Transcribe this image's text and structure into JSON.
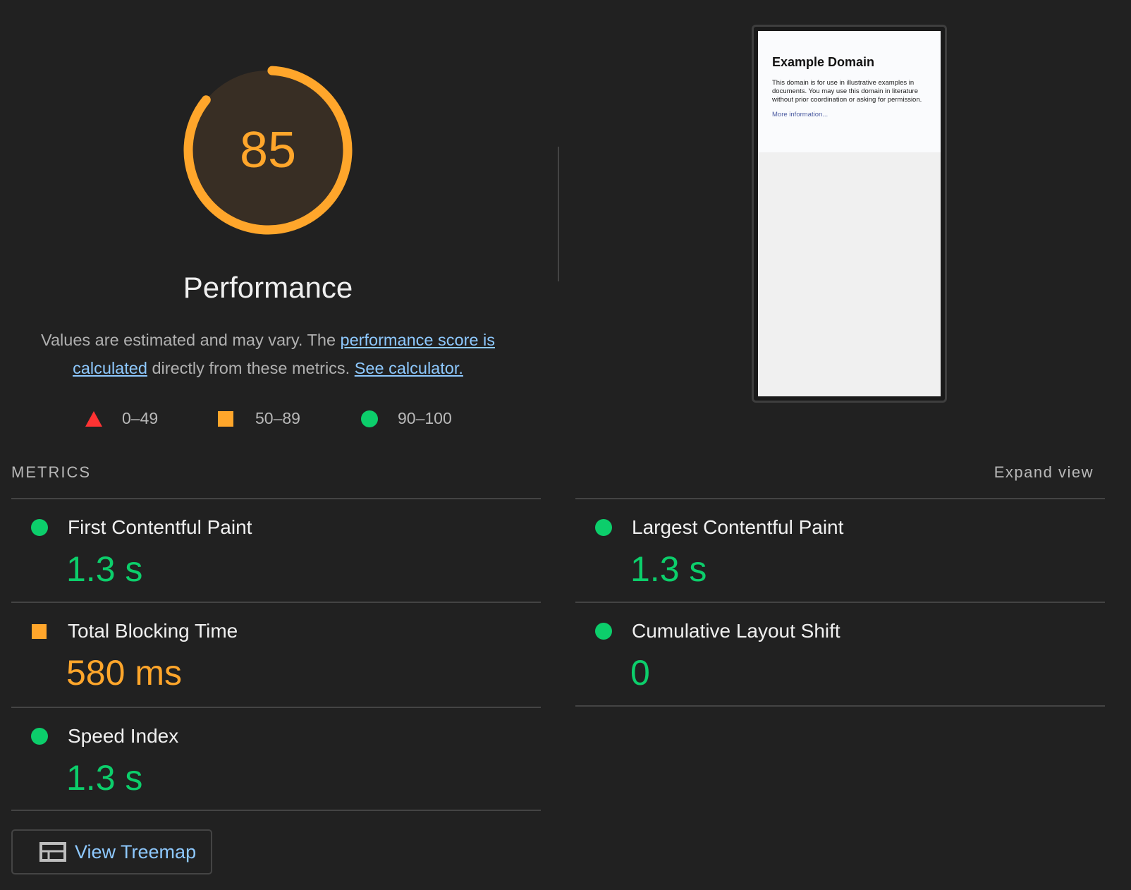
{
  "score": {
    "value": 85,
    "color": "#ffa62b",
    "track_fill": "#382e24"
  },
  "category_title": "Performance",
  "description": {
    "text1": "Values are estimated and may vary. The ",
    "link1": "performance score is calculated",
    "text2": " directly from these metrics. ",
    "link2": "See calculator."
  },
  "legend": [
    {
      "icon": "triangle-icon",
      "label": "0–49",
      "color": "#ff3333"
    },
    {
      "icon": "square-icon",
      "label": "50–89",
      "color": "#ffa62b"
    },
    {
      "icon": "circle-icon",
      "label": "90–100",
      "color": "#0cce6b"
    }
  ],
  "screenshot": {
    "title": "Example Domain",
    "body": "This domain is for use in illustrative examples in documents. You may use this domain in literature without prior coordination or asking for permission.",
    "link": "More information..."
  },
  "metrics_header": "METRICS",
  "expand_view": "Expand view",
  "metrics": [
    {
      "name": "First Contentful Paint",
      "value": "1.3 s",
      "status": "pass"
    },
    {
      "name": "Largest Contentful Paint",
      "value": "1.3 s",
      "status": "pass"
    },
    {
      "name": "Total Blocking Time",
      "value": "580 ms",
      "status": "average"
    },
    {
      "name": "Cumulative Layout Shift",
      "value": "0",
      "status": "pass"
    },
    {
      "name": "Speed Index",
      "value": "1.3 s",
      "status": "pass"
    }
  ],
  "treemap_button": "View Treemap"
}
